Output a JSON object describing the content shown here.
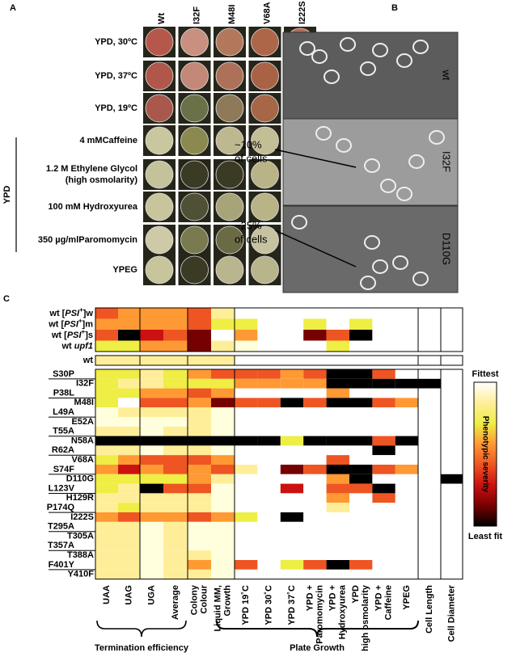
{
  "panels": {
    "a": "A",
    "b": "B",
    "c": "C"
  },
  "panel_a": {
    "strains": [
      "Wt",
      "I32F",
      "M48I",
      "V68A",
      "I222S"
    ],
    "conditions": [
      [
        "YPD, 30ºC"
      ],
      [
        "YPD, 37ºC"
      ],
      [
        "YPD, 19ºC"
      ],
      [
        "4 mMCaffeine"
      ],
      [
        "1.2 M Ethylene Glycol",
        "(high osmolarity)"
      ],
      [
        "100 mM Hydroxyurea"
      ],
      [
        "350 µg/mlParomomycin"
      ],
      [
        "YPEG"
      ]
    ],
    "group_label": "YPD"
  },
  "panel_b": {
    "strains": [
      "wt",
      "I32F",
      "D110G"
    ],
    "annotations": [
      [
        "~10%",
        "of cells"
      ],
      [
        "~25%",
        "of cells"
      ]
    ]
  },
  "panel_c": {
    "columns": [
      [
        "UAA"
      ],
      [
        "UAG"
      ],
      [
        "UGA"
      ],
      [
        "Average"
      ],
      [
        "Colony",
        "Colour"
      ],
      [
        "Liquid MM,",
        "Growth"
      ],
      [
        "YPD 19˚C"
      ],
      [
        "YPD 30˚C"
      ],
      [
        "YPD 37˚C"
      ],
      [
        "YPD +",
        "Paromomycin"
      ],
      [
        "YPD +",
        "Hydroxyurea"
      ],
      [
        "YPD",
        "high osmolarity"
      ],
      [
        "YPD +",
        "Caffeine"
      ],
      [
        "YPEG"
      ],
      [
        "Cell Length"
      ],
      [
        "Cell Diameter"
      ]
    ],
    "strain_rows": [
      {
        "label": [
          "wt [",
          "PSI",
          "+",
          "]w"
        ],
        "colors": [
          "#e52",
          "#f93",
          "#f93",
          "#f93",
          "#e52",
          "#fe9",
          "#fff",
          "#fff",
          "#fff",
          "#fff",
          "#fff",
          "#fff",
          "#fff",
          "#fff",
          "#fff",
          "#fff"
        ]
      },
      {
        "label": [
          "wt [",
          "PSI",
          "+",
          "]m"
        ],
        "colors": [
          "#f93",
          "#f93",
          "#f93",
          "#f93",
          "#e52",
          "#ee4",
          "#ee4",
          "#fff",
          "#fff",
          "#ee4",
          "#fff",
          "#ee4",
          "#fff",
          "#fff",
          "#fff",
          "#fff"
        ]
      },
      {
        "label": [
          "wt [",
          "PSI",
          "+",
          "]s"
        ],
        "colors": [
          "#e52",
          "#000",
          "#c11",
          "#e52",
          "#700",
          "#fff",
          "#f93",
          "#fff",
          "#fff",
          "#700",
          "#e52",
          "#000",
          "#fff",
          "#fff",
          "#fff",
          "#fff"
        ]
      },
      {
        "label": [
          "wt ",
          "upf1"
        ],
        "colors": [
          "#ee4",
          "#ee4",
          "#f93",
          "#f93",
          "#700",
          "#fe9",
          "#ffd",
          "#fff",
          "#fff",
          "#fff",
          "#ee4",
          "#fff",
          "#fff",
          "#fff",
          "#fff",
          "#fff"
        ]
      }
    ],
    "wt_row": {
      "label": "wt",
      "colors": [
        "#fe9",
        "#fe9",
        "#fe9",
        "#fe9",
        "#fe9",
        "#fe9",
        "#fff",
        "#fff",
        "#fff",
        "#fff",
        "#fff",
        "#fff",
        "#fff",
        "#fff",
        "#fff",
        "#fff"
      ]
    },
    "mutant_rows": [
      {
        "label": "S30P",
        "colors": [
          "#ee4",
          "#ee4",
          "#fe9",
          "#ee4",
          "#f93",
          "#e52",
          "#e52",
          "#e52",
          "#f93",
          "#e52",
          "#000",
          "#000",
          "#e52",
          "#fff",
          "#fff",
          "#fff"
        ]
      },
      {
        "label": "I32F",
        "colors": [
          "#ee4",
          "#fe9",
          "#fe9",
          "#ee4",
          "#ee4",
          "#ee4",
          "#f93",
          "#f93",
          "#f93",
          "#f93",
          "#000",
          "#000",
          "#000",
          "#000",
          "#000",
          "#fff"
        ]
      },
      {
        "label": "P38L",
        "colors": [
          "#ee4",
          "#ee4",
          "#f93",
          "#f93",
          "#e52",
          "#f93",
          "#fff",
          "#fff",
          "#fff",
          "#fff",
          "#f93",
          "#fff",
          "#fff",
          "#fff",
          "#fff",
          "#fff"
        ]
      },
      {
        "label": "M48I",
        "colors": [
          "#ee4",
          "#fff",
          "#e52",
          "#e52",
          "#f93",
          "#700",
          "#e52",
          "#e52",
          "#000",
          "#e52",
          "#000",
          "#000",
          "#e52",
          "#f93",
          "#fff",
          "#fff"
        ]
      },
      {
        "label": "L49A",
        "colors": [
          "#ffd",
          "#fe9",
          "#fe9",
          "#fe9",
          "#fe9",
          "#ffd",
          "#fff",
          "#fff",
          "#fff",
          "#fff",
          "#fff",
          "#fff",
          "#fff",
          "#fff",
          "#fff",
          "#fff"
        ]
      },
      {
        "label": "E52A",
        "colors": [
          "#ffd",
          "#ffd",
          "#ffd",
          "#ffd",
          "#fe9",
          "#ffd",
          "#fff",
          "#fff",
          "#fff",
          "#fff",
          "#fff",
          "#fff",
          "#fff",
          "#fff",
          "#fff",
          "#fff"
        ]
      },
      {
        "label": "T55A",
        "colors": [
          "#fe9",
          "#fe9",
          "#ffd",
          "#fe9",
          "#fe9",
          "#ffd",
          "#fff",
          "#fff",
          "#fff",
          "#fff",
          "#fff",
          "#fff",
          "#fff",
          "#fff",
          "#fff",
          "#fff"
        ]
      },
      {
        "label": "N58A",
        "colors": [
          "#000",
          "#000",
          "#000",
          "#000",
          "#000",
          "#000",
          "#000",
          "#000",
          "#ee4",
          "#000",
          "#000",
          "#000",
          "#e52",
          "#000",
          "#fff",
          "#fff"
        ]
      },
      {
        "label": "R62A",
        "colors": [
          "#fe9",
          "#fe9",
          "#ffd",
          "#fe9",
          "#fe9",
          "#ffd",
          "#fff",
          "#fff",
          "#fff",
          "#fff",
          "#fff",
          "#fff",
          "#000",
          "#fff",
          "#fff",
          "#fff"
        ]
      },
      {
        "label": "V68A",
        "colors": [
          "#ee4",
          "#f93",
          "#e52",
          "#e52",
          "#e52",
          "#f93",
          "#fff",
          "#fff",
          "#fff",
          "#fff",
          "#e52",
          "#fff",
          "#fff",
          "#fff",
          "#fff",
          "#fff"
        ]
      },
      {
        "label": "S74F",
        "colors": [
          "#f93",
          "#c11",
          "#f93",
          "#e52",
          "#f93",
          "#e52",
          "#fe9",
          "#fff",
          "#700",
          "#e52",
          "#000",
          "#000",
          "#e52",
          "#f93",
          "#fff",
          "#fff"
        ]
      },
      {
        "label": "D110G",
        "colors": [
          "#ee4",
          "#ee4",
          "#ee4",
          "#ee4",
          "#f93",
          "#fe9",
          "#fff",
          "#fff",
          "#fff",
          "#fff",
          "#f93",
          "#000",
          "#fff",
          "#fff",
          "#fff",
          "#000"
        ]
      },
      {
        "label": "L123V",
        "colors": [
          "#ee4",
          "#fe9",
          "#000",
          "#e52",
          "#e52",
          "#ffd",
          "#fff",
          "#fff",
          "#c11",
          "#fff",
          "#e52",
          "#e52",
          "#000",
          "#fff",
          "#fff",
          "#fff"
        ]
      },
      {
        "label": "H129R",
        "colors": [
          "#fe9",
          "#fe9",
          "#fe9",
          "#fe9",
          "#fe9",
          "#ffd",
          "#fff",
          "#fff",
          "#fff",
          "#fff",
          "#f93",
          "#fff",
          "#e52",
          "#fff",
          "#fff",
          "#fff"
        ]
      },
      {
        "label": "P174Q",
        "colors": [
          "#fe9",
          "#ee4",
          "#fe9",
          "#fe9",
          "#fe9",
          "#ffd",
          "#fff",
          "#fff",
          "#fff",
          "#fff",
          "#fe9",
          "#fff",
          "#fff",
          "#fff",
          "#fff",
          "#fff"
        ]
      },
      {
        "label": "I222S",
        "colors": [
          "#f93",
          "#e52",
          "#f93",
          "#f93",
          "#e52",
          "#f93",
          "#ee4",
          "#fff",
          "#000",
          "#fff",
          "#fff",
          "#fff",
          "#fff",
          "#fff",
          "#fff",
          "#fff"
        ]
      },
      {
        "label": "T295A",
        "colors": [
          "#fe9",
          "#fe9",
          "#ffd",
          "#fe9",
          "#ffd",
          "#ffd",
          "#fff",
          "#fff",
          "#fff",
          "#fff",
          "#fff",
          "#fff",
          "#fff",
          "#fff",
          "#fff",
          "#fff"
        ]
      },
      {
        "label": "T305A",
        "colors": [
          "#fe9",
          "#fe9",
          "#ffd",
          "#fe9",
          "#ffd",
          "#ffd",
          "#fff",
          "#fff",
          "#fff",
          "#fff",
          "#fff",
          "#fff",
          "#fff",
          "#fff",
          "#fff",
          "#fff"
        ]
      },
      {
        "label": "T357A",
        "colors": [
          "#fe9",
          "#fe9",
          "#ffd",
          "#fe9",
          "#ffd",
          "#ffd",
          "#fff",
          "#fff",
          "#fff",
          "#fff",
          "#fff",
          "#fff",
          "#fff",
          "#fff",
          "#fff",
          "#fff"
        ]
      },
      {
        "label": "T388A",
        "colors": [
          "#fe9",
          "#fe9",
          "#ffd",
          "#fe9",
          "#fe9",
          "#ffd",
          "#fff",
          "#fff",
          "#fff",
          "#fff",
          "#fff",
          "#fff",
          "#fff",
          "#fff",
          "#fff",
          "#fff"
        ]
      },
      {
        "label": "F401Y",
        "colors": [
          "#fe9",
          "#fe9",
          "#ffd",
          "#fe9",
          "#f93",
          "#ffd",
          "#e52",
          "#fff",
          "#ee4",
          "#e52",
          "#000",
          "#e52",
          "#fff",
          "#fff",
          "#fff",
          "#fff"
        ]
      },
      {
        "label": "Y410F",
        "colors": [
          "#fe9",
          "#fe9",
          "#ffd",
          "#fe9",
          "#fe9",
          "#ffd",
          "#fff",
          "#fff",
          "#fff",
          "#fff",
          "#fff",
          "#fff",
          "#fff",
          "#fff",
          "#fff",
          "#fff"
        ]
      }
    ],
    "legend": {
      "top": "Fittest",
      "title": "Phenotypic severity",
      "bottom": "Least fit",
      "colors": [
        "#ffffff",
        "#ffee99",
        "#eeee44",
        "#ff9933",
        "#ee5522",
        "#cc1111",
        "#770000",
        "#000000"
      ]
    },
    "groups": [
      "Termination efficiency",
      "Plate Growth"
    ]
  }
}
